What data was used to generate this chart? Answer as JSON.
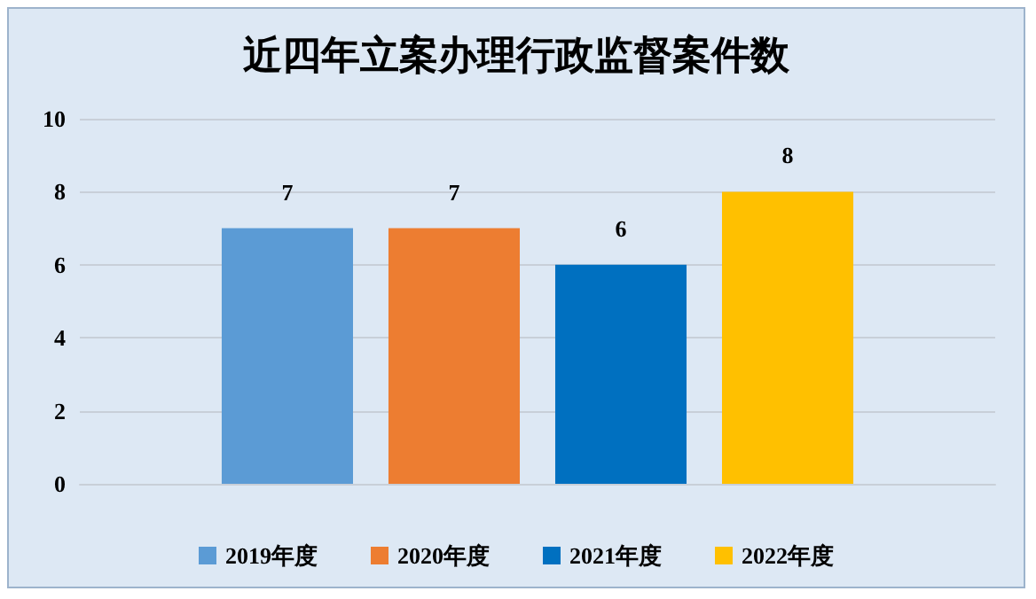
{
  "chart_data": {
    "type": "bar",
    "title": "近四年立案办理行政监督案件数",
    "categories": [
      null
    ],
    "series": [
      {
        "name": "2019年度",
        "color": "#5b9bd5",
        "values": [
          7
        ]
      },
      {
        "name": "2020年度",
        "color": "#ed7d31",
        "values": [
          7
        ]
      },
      {
        "name": "2021年度",
        "color": "#0070c0",
        "values": [
          6
        ]
      },
      {
        "name": "2022年度",
        "color": "#ffc000",
        "values": [
          8
        ]
      }
    ],
    "ylim": [
      0,
      10
    ],
    "yticks": [
      0,
      2,
      4,
      6,
      8,
      10
    ],
    "grid": "y",
    "legend": "bottom",
    "data_labels": true
  }
}
